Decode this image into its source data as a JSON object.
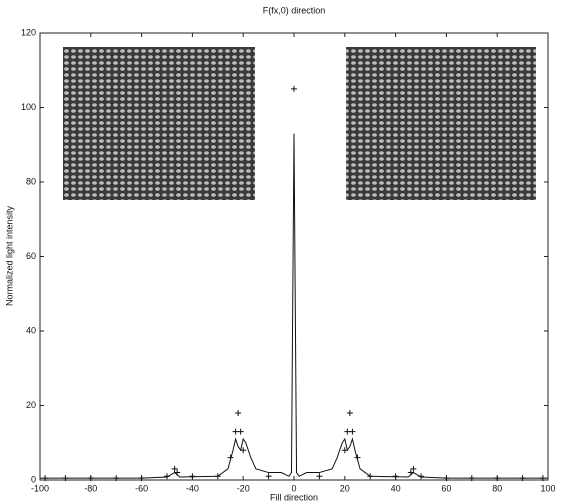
{
  "chart_data": {
    "type": "line",
    "title": "F(fx,0) direction",
    "x_label": "Fill direction",
    "y_label": "Normalized light intensity",
    "xlim": [
      -100,
      100
    ],
    "xticks": [
      -100,
      -80,
      -60,
      -40,
      -20,
      0,
      20,
      40,
      60,
      80,
      100
    ],
    "ylim": [
      0,
      120
    ],
    "yticks": [
      0,
      20,
      40,
      60,
      80,
      100,
      120
    ],
    "grid": false,
    "series": [
      {
        "color": "#111111",
        "style": "line",
        "x": [
          -100,
          -60,
          -50,
          -47,
          -45,
          -30,
          -26,
          -24,
          -23,
          -22,
          -21,
          -20,
          -19,
          -17,
          -15,
          -10,
          -5,
          -2,
          -1,
          0,
          1,
          2,
          5,
          10,
          15,
          17,
          19,
          20,
          21,
          22,
          23,
          24,
          26,
          30,
          45,
          47,
          50,
          60,
          100
        ],
        "values": [
          0.5,
          0.5,
          0.8,
          2,
          0.8,
          1,
          3,
          8,
          11,
          9,
          8,
          11,
          10,
          6,
          3,
          2,
          2,
          1,
          2,
          93,
          2,
          1,
          2,
          2,
          3,
          6,
          10,
          11,
          8,
          9,
          11,
          8,
          3,
          1,
          0.8,
          2,
          0.8,
          0.5,
          0.5
        ]
      },
      {
        "color": "#111111",
        "style": "plus",
        "x": [
          -98,
          -90,
          -80,
          -70,
          -60,
          -50,
          -47,
          -46,
          -40,
          -30,
          -25,
          -23,
          -22,
          -21,
          -20,
          -10,
          0,
          10,
          20,
          21,
          22,
          23,
          25,
          30,
          40,
          46,
          47,
          50,
          60,
          70,
          80,
          90,
          98
        ],
        "values": [
          0.5,
          0.5,
          0.5,
          0.5,
          0.5,
          1,
          3,
          2,
          1,
          1,
          6,
          13,
          18,
          13,
          8,
          1,
          105,
          1,
          8,
          13,
          18,
          13,
          6,
          1,
          1,
          2,
          3,
          1,
          0.5,
          0.5,
          0.5,
          0.5,
          0.5
        ]
      }
    ]
  }
}
